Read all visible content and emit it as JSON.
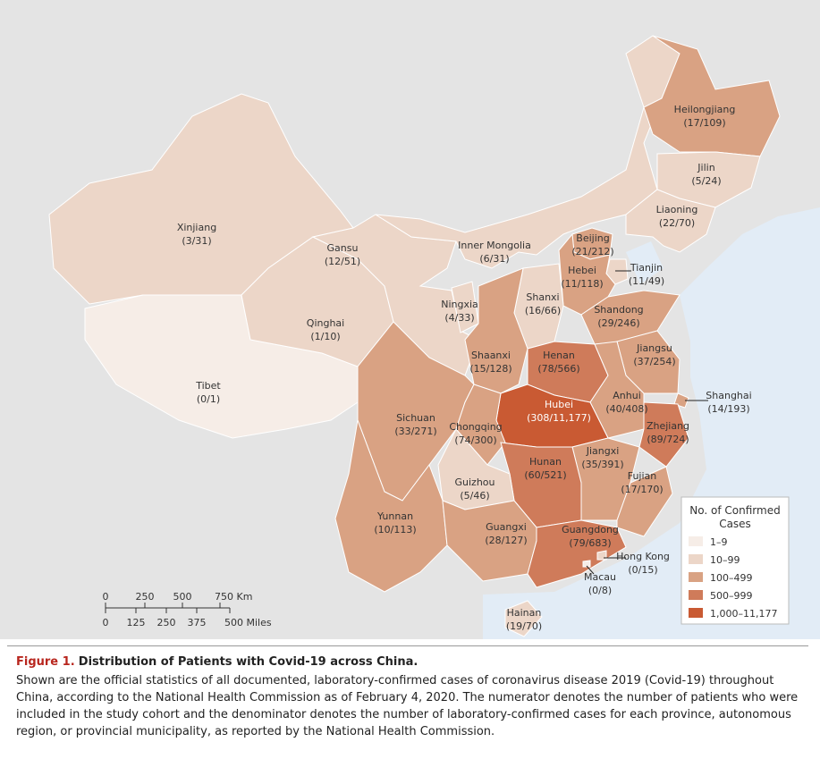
{
  "regions": [
    {
      "name": "Xinjiang",
      "counts": "(3/31)",
      "color": "#ecd6c8"
    },
    {
      "name": "Tibet",
      "counts": "(0/1)",
      "color": "#f6ede7"
    },
    {
      "name": "Qinghai",
      "counts": "(1/10)",
      "color": "#ecd6c8"
    },
    {
      "name": "Gansu",
      "counts": "(12/51)",
      "color": "#ecd6c8"
    },
    {
      "name": "Inner Mongolia",
      "counts": "(6/31)",
      "color": "#ecd6c8"
    },
    {
      "name": "Heilongjiang",
      "counts": "(17/109)",
      "color": "#d9a283"
    },
    {
      "name": "Jilin",
      "counts": "(5/24)",
      "color": "#ecd6c8"
    },
    {
      "name": "Liaoning",
      "counts": "(22/70)",
      "color": "#ecd6c8"
    },
    {
      "name": "Beijing",
      "counts": "(21/212)",
      "color": "#d9a283"
    },
    {
      "name": "Tianjin",
      "counts": "(11/49)",
      "color": "#ecd6c8"
    },
    {
      "name": "Hebei",
      "counts": "(11/118)",
      "color": "#d9a283"
    },
    {
      "name": "Shanxi",
      "counts": "(16/66)",
      "color": "#ecd6c8"
    },
    {
      "name": "Ningxia",
      "counts": "(4/33)",
      "color": "#ecd6c8"
    },
    {
      "name": "Shandong",
      "counts": "(29/246)",
      "color": "#d9a283"
    },
    {
      "name": "Shaanxi",
      "counts": "(15/128)",
      "color": "#d9a283"
    },
    {
      "name": "Henan",
      "counts": "(78/566)",
      "color": "#cf7b5a"
    },
    {
      "name": "Jiangsu",
      "counts": "(37/254)",
      "color": "#d9a283"
    },
    {
      "name": "Anhui",
      "counts": "(40/408)",
      "color": "#d9a283"
    },
    {
      "name": "Shanghai",
      "counts": "(14/193)",
      "color": "#d9a283"
    },
    {
      "name": "Hubei",
      "counts": "(308/11,177)",
      "color": "#c95a33"
    },
    {
      "name": "Zhejiang",
      "counts": "(89/724)",
      "color": "#cf7b5a"
    },
    {
      "name": "Sichuan",
      "counts": "(33/271)",
      "color": "#d9a283"
    },
    {
      "name": "Chongqing",
      "counts": "(74/300)",
      "color": "#d9a283"
    },
    {
      "name": "Jiangxi",
      "counts": "(35/391)",
      "color": "#d9a283"
    },
    {
      "name": "Hunan",
      "counts": "(60/521)",
      "color": "#cf7b5a"
    },
    {
      "name": "Fujian",
      "counts": "(17/170)",
      "color": "#d9a283"
    },
    {
      "name": "Guizhou",
      "counts": "(5/46)",
      "color": "#ecd6c8"
    },
    {
      "name": "Yunnan",
      "counts": "(10/113)",
      "color": "#d9a283"
    },
    {
      "name": "Guangxi",
      "counts": "(28/127)",
      "color": "#d9a283"
    },
    {
      "name": "Guangdong",
      "counts": "(79/683)",
      "color": "#cf7b5a"
    },
    {
      "name": "Hong Kong",
      "counts": "(0/15)",
      "color": "#ecd6c8"
    },
    {
      "name": "Macau",
      "counts": "(0/8)",
      "color": "#f6ede7"
    },
    {
      "name": "Hainan",
      "counts": "(19/70)",
      "color": "#ecd6c8"
    }
  ],
  "legend": {
    "title": [
      "No. of Confirmed",
      "Cases"
    ],
    "items": [
      {
        "label": "1–9",
        "color": "#f6ede7"
      },
      {
        "label": "10–99",
        "color": "#ecd6c8"
      },
      {
        "label": "100–499",
        "color": "#d9a283"
      },
      {
        "label": "500–999",
        "color": "#cf7b5a"
      },
      {
        "label": "1,000–11,177",
        "color": "#c95a33"
      }
    ]
  },
  "scale": {
    "km": [
      "0",
      "250",
      "500",
      "750 Km"
    ],
    "miles": [
      "0",
      "125",
      "250",
      "375",
      "500 Miles"
    ]
  },
  "caption": {
    "label": "Figure 1.",
    "title": "Distribution of Patients with Covid-19 across China.",
    "text": "Shown are the official statistics of all documented, laboratory-confirmed cases of coronavirus disease 2019 (Covid-19) throughout China, according to the National Health Commission as of February 4, 2020. The numerator denotes the number of patients who were included in the study cohort and the denominator denotes the number of laboratory-confirmed cases for each province, autonomous region, or provincial municipality, as reported by the National Health Commission."
  }
}
